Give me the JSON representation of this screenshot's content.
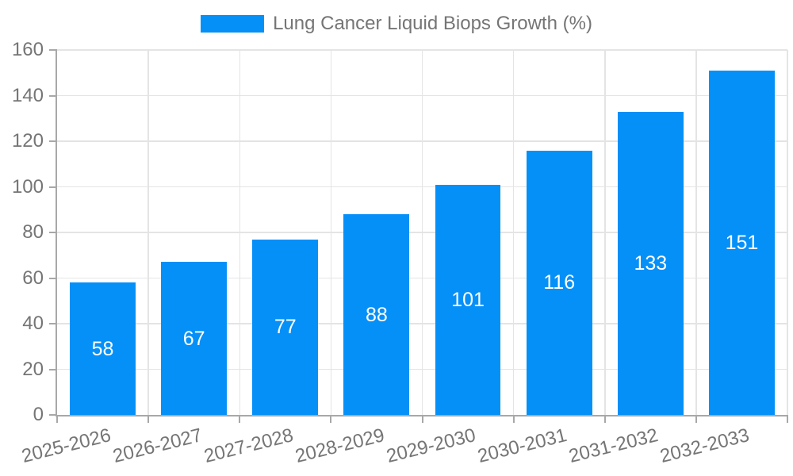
{
  "chart_data": {
    "type": "bar",
    "title": "Lung Cancer Liquid Biops Growth (%)",
    "categories": [
      "2025-2026",
      "2026-2027",
      "2027-2028",
      "2028-2029",
      "2029-2030",
      "2030-2031",
      "2031-2032",
      "2032-2033"
    ],
    "values": [
      58,
      67,
      77,
      88,
      101,
      116,
      133,
      151
    ],
    "xlabel": "",
    "ylabel": "",
    "ylim": [
      0,
      160
    ],
    "ytick_step": 20,
    "ytick_labels": [
      "0",
      "20",
      "40",
      "60",
      "80",
      "100",
      "120",
      "140",
      "160"
    ],
    "grid": true,
    "legend_position": "top",
    "colors": {
      "bar": "#0590f8",
      "bar_label": "#ffffff",
      "axis_text": "#757575",
      "axis_line": "#a8a8a8",
      "gridline": "#e4e4e4",
      "background": "#ffffff"
    }
  }
}
